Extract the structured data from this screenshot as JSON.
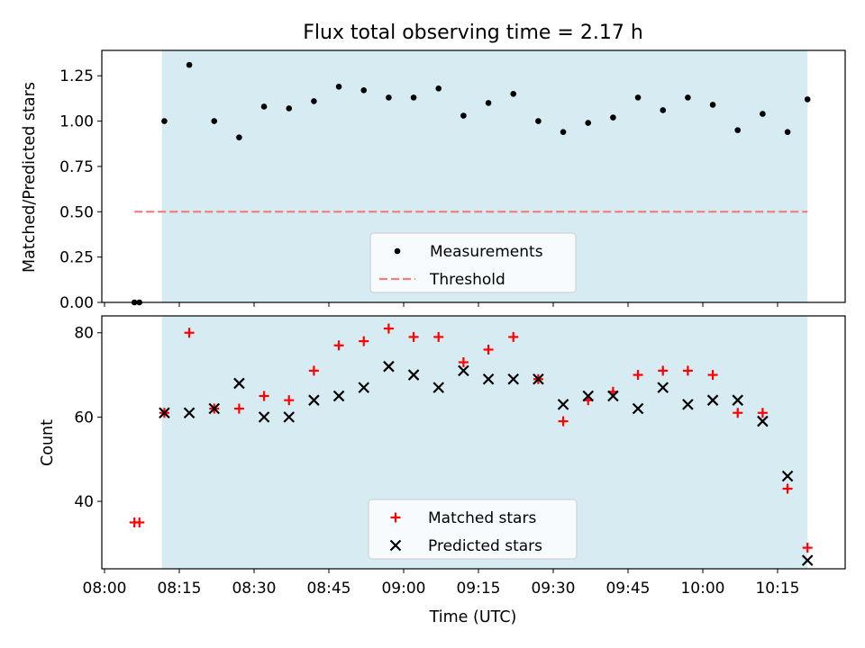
{
  "title": "Flux total observing time = 2.17 h",
  "colors": {
    "shade": "#ADD8E6",
    "threshold": "#F08080",
    "matched": "#FF0000",
    "predicted": "#000000",
    "measurement": "#000000"
  },
  "chart_data": [
    {
      "type": "scatter",
      "panel": "top",
      "ylabel": "Matched/Predicted stars",
      "xlim_minutes": [
        0,
        150
      ],
      "ylim": [
        0,
        1.39
      ],
      "yticks": [
        0,
        0.25,
        0.5,
        0.75,
        1.0,
        1.25
      ],
      "ytick_labels": [
        "0.00",
        "0.25",
        "0.50",
        "0.75",
        "1.00",
        "1.25"
      ],
      "shaded_span": [
        "08:11.5",
        "10:21"
      ],
      "threshold": {
        "value": 0.5,
        "x_from": "08:06",
        "x_to": "10:21"
      },
      "legend": {
        "position": "lower center",
        "entries": [
          "Measurements",
          "Threshold"
        ]
      },
      "series": [
        {
          "name": "Measurements",
          "x": [
            "08:06",
            "08:07",
            "08:12",
            "08:17",
            "08:22",
            "08:27",
            "08:32",
            "08:37",
            "08:42",
            "08:47",
            "08:52",
            "08:57",
            "09:02",
            "09:07",
            "09:12",
            "09:17",
            "09:22",
            "09:27",
            "09:32",
            "09:37",
            "09:42",
            "09:47",
            "09:52",
            "09:57",
            "10:02",
            "10:07",
            "10:12",
            "10:17",
            "10:21"
          ],
          "values": [
            0.0,
            0.0,
            1.0,
            1.31,
            1.0,
            0.91,
            1.08,
            1.07,
            1.11,
            1.19,
            1.17,
            1.13,
            1.13,
            1.18,
            1.03,
            1.1,
            1.15,
            1.0,
            0.94,
            0.99,
            1.02,
            1.13,
            1.06,
            1.13,
            1.09,
            0.95,
            1.04,
            0.94,
            1.12
          ]
        }
      ]
    },
    {
      "type": "scatter",
      "panel": "bottom",
      "xlabel": "Time (UTC)",
      "ylabel": "Count",
      "xlim_minutes": [
        0,
        150
      ],
      "ylim": [
        24,
        84
      ],
      "yticks": [
        40,
        60,
        80
      ],
      "ytick_labels": [
        "40",
        "60",
        "80"
      ],
      "xticks": [
        "08:00",
        "08:15",
        "08:30",
        "08:45",
        "09:00",
        "09:15",
        "09:30",
        "09:45",
        "10:00",
        "10:15"
      ],
      "shaded_span": [
        "08:11.5",
        "10:21"
      ],
      "legend": {
        "position": "lower center",
        "entries": [
          "Matched stars",
          "Predicted stars"
        ]
      },
      "series": [
        {
          "name": "Matched stars",
          "marker": "+",
          "x": [
            "08:06",
            "08:07",
            "08:12",
            "08:17",
            "08:22",
            "08:27",
            "08:32",
            "08:37",
            "08:42",
            "08:47",
            "08:52",
            "08:57",
            "09:02",
            "09:07",
            "09:12",
            "09:17",
            "09:22",
            "09:27",
            "09:32",
            "09:37",
            "09:42",
            "09:47",
            "09:52",
            "09:57",
            "10:02",
            "10:07",
            "10:12",
            "10:17",
            "10:21"
          ],
          "values": [
            35,
            35,
            61,
            80,
            62,
            62,
            65,
            64,
            71,
            77,
            78,
            81,
            79,
            79,
            73,
            76,
            79,
            69,
            59,
            64,
            66,
            70,
            71,
            71,
            70,
            61,
            61,
            43,
            29
          ]
        },
        {
          "name": "Predicted stars",
          "marker": "x",
          "x": [
            "08:12",
            "08:17",
            "08:22",
            "08:27",
            "08:32",
            "08:37",
            "08:42",
            "08:47",
            "08:52",
            "08:57",
            "09:02",
            "09:07",
            "09:12",
            "09:17",
            "09:22",
            "09:27",
            "09:32",
            "09:37",
            "09:42",
            "09:47",
            "09:52",
            "09:57",
            "10:02",
            "10:07",
            "10:12",
            "10:17",
            "10:21"
          ],
          "values": [
            61,
            61,
            62,
            68,
            60,
            60,
            64,
            65,
            67,
            72,
            70,
            67,
            71,
            69,
            69,
            69,
            63,
            65,
            65,
            62,
            67,
            63,
            64,
            64,
            59,
            46,
            26
          ]
        }
      ]
    }
  ]
}
